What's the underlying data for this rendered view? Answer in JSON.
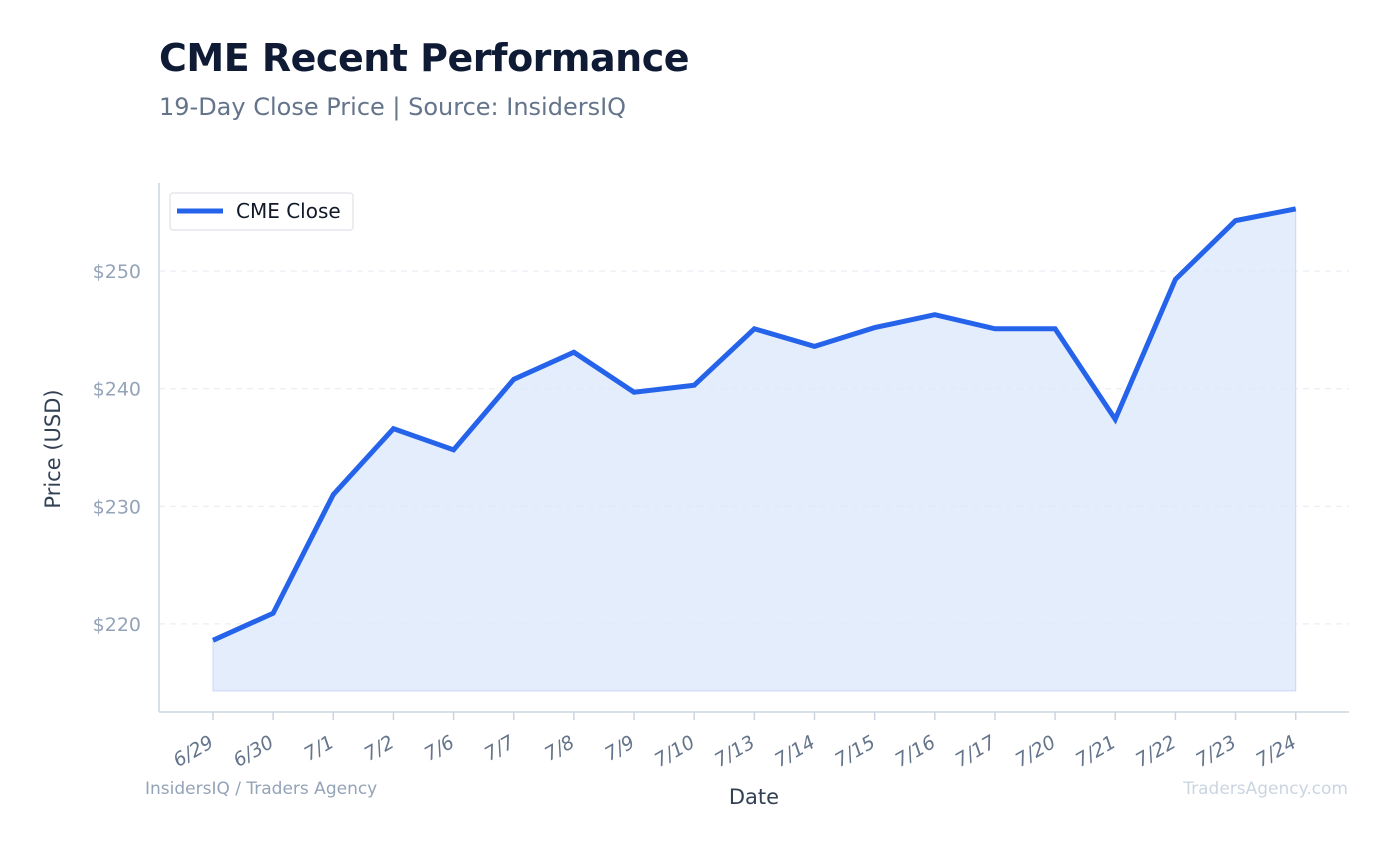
{
  "header": {
    "title": "CME Recent Performance",
    "subtitle": "19-Day Close Price | Source: InsidersIQ"
  },
  "footer": {
    "left": "InsidersIQ / Traders Agency",
    "right": "TradersAgency.com"
  },
  "colors": {
    "line": "#2563eb",
    "fill": "#dbe7fb",
    "grid": "#e5e9f0",
    "axis": "#cbd5e1"
  },
  "chart_data": {
    "type": "area",
    "title": "CME Recent Performance",
    "subtitle": "19-Day Close Price | Source: InsidersIQ",
    "xlabel": "Date",
    "ylabel": "Price (USD)",
    "categories": [
      "6/29",
      "6/30",
      "7/1",
      "7/2",
      "7/6",
      "7/7",
      "7/8",
      "7/9",
      "7/10",
      "7/13",
      "7/14",
      "7/15",
      "7/16",
      "7/17",
      "7/20",
      "7/21",
      "7/22",
      "7/23",
      "7/24"
    ],
    "series": [
      {
        "name": "CME Close",
        "values": [
          218.6,
          220.9,
          231.0,
          236.6,
          234.8,
          240.8,
          243.1,
          239.7,
          240.3,
          245.1,
          243.6,
          245.2,
          246.3,
          245.1,
          245.1,
          237.4,
          249.3,
          254.3,
          255.3
        ]
      }
    ],
    "ylim": [
      212.5,
      257.5
    ],
    "yticks": [
      220,
      230,
      240,
      250
    ],
    "ytick_labels": [
      "$220",
      "$230",
      "$240",
      "$250"
    ],
    "fill_baseline": 214.3,
    "grid": true,
    "legend": "top-left"
  }
}
